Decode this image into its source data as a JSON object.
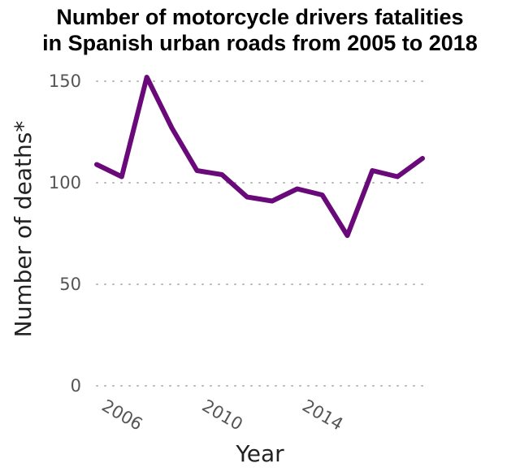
{
  "chart_data": {
    "type": "line",
    "title_lines": [
      "Number of motorcycle drivers fatalities",
      "in Spanish urban roads from 2005 to 2018"
    ],
    "xlabel": "Year",
    "ylabel": "Number of deaths*",
    "x": [
      2005,
      2006,
      2007,
      2008,
      2009,
      2010,
      2011,
      2012,
      2013,
      2014,
      2015,
      2016,
      2017,
      2018
    ],
    "series": [
      {
        "values": [
          109,
          103,
          152,
          127,
          106,
          104,
          93,
          91,
          97,
          94,
          74,
          106,
          103,
          112
        ],
        "color": "#6a0a7a"
      }
    ],
    "x_ticks": [
      2006,
      2010,
      2014
    ],
    "x_tick_labels": [
      "2006",
      "2010",
      "2014"
    ],
    "y_ticks": [
      0,
      50,
      100,
      150
    ],
    "y_tick_labels": [
      "0",
      "50",
      "100",
      "150"
    ],
    "xlim": [
      2005,
      2018
    ],
    "ylim": [
      0,
      150
    ],
    "grid": "horizontal dotted",
    "legend": "none"
  }
}
